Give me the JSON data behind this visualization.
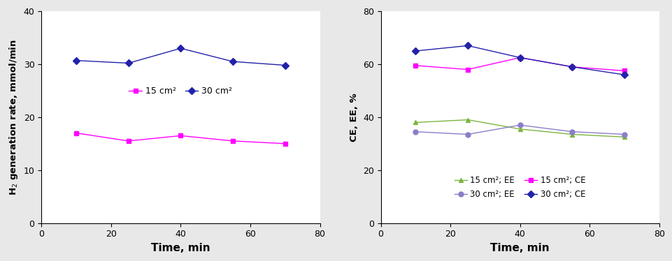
{
  "time": [
    10,
    25,
    40,
    55,
    70
  ],
  "left": {
    "ylabel": "H$_2$ generation rate, mmol/min",
    "xlabel": "Time, min",
    "xlim": [
      0,
      80
    ],
    "ylim": [
      0,
      40
    ],
    "yticks": [
      0,
      10,
      20,
      30,
      40
    ],
    "xticks": [
      0,
      20,
      40,
      60,
      80
    ],
    "series": [
      {
        "label": "15 cm²",
        "values": [
          17.0,
          15.5,
          16.5,
          15.5,
          15.0
        ],
        "color": "#FF00FF",
        "marker": "s",
        "linestyle": "-"
      },
      {
        "label": "30 cm²",
        "values": [
          30.7,
          30.2,
          33.0,
          30.5,
          29.8
        ],
        "color": "#2222AA",
        "marker": "D",
        "linestyle": "-"
      }
    ]
  },
  "right": {
    "ylabel": "CE, EE, %",
    "xlabel": "Time, min",
    "xlim": [
      0,
      80
    ],
    "ylim": [
      0,
      80
    ],
    "yticks": [
      0,
      20,
      40,
      60,
      80
    ],
    "xticks": [
      0,
      20,
      40,
      60,
      80
    ],
    "series": [
      {
        "label": "15 cm²; EE",
        "values": [
          38.0,
          39.0,
          35.5,
          33.5,
          32.5
        ],
        "color": "#7DB540",
        "marker": "^",
        "linestyle": "-"
      },
      {
        "label": "30 cm²; EE",
        "values": [
          34.5,
          33.5,
          37.0,
          34.5,
          33.5
        ],
        "color": "#8B7EC8",
        "marker": "o",
        "linestyle": "-"
      },
      {
        "label": "15 cm²; CE",
        "values": [
          59.5,
          58.0,
          62.5,
          59.0,
          57.5
        ],
        "color": "#FF00FF",
        "marker": "s",
        "linestyle": "-"
      },
      {
        "label": "30 cm²; CE",
        "values": [
          65.0,
          67.0,
          62.5,
          59.0,
          56.0
        ],
        "color": "#2222AA",
        "marker": "D",
        "linestyle": "-"
      }
    ]
  },
  "bg_color": "#E8E8E8",
  "axes_bg": "#FFFFFF"
}
